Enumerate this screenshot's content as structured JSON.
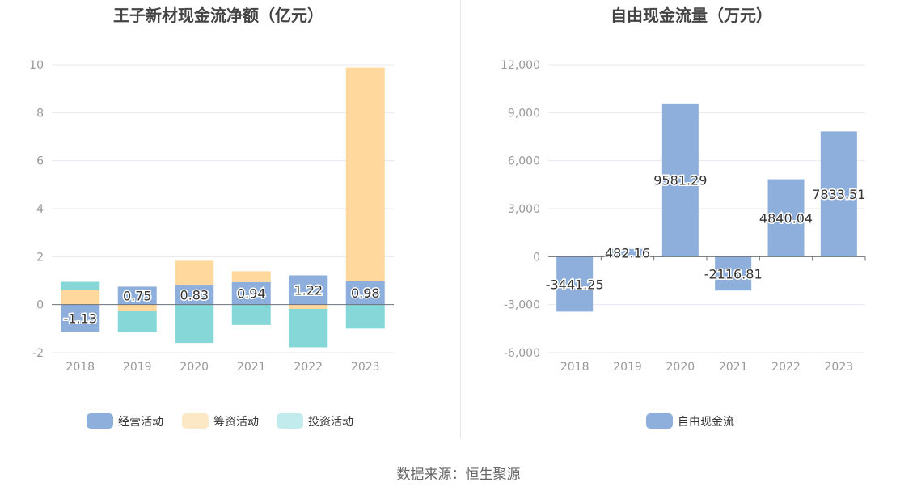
{
  "source_note": "数据来源：恒生聚源",
  "colors": {
    "operating": "#8eaedb",
    "financing": "#fed89c",
    "investing": "#86d7d8",
    "free_cash_flow": "#8eaedb",
    "legend_financing": "#fde8c6",
    "legend_investing": "#c1ebec",
    "axis_text": "#999999",
    "title_text": "#444444",
    "grid": "#e4e8ef"
  },
  "chart_data": [
    {
      "type": "bar",
      "stacked": true,
      "title": "王子新材现金流净额（亿元）",
      "categories": [
        "2018",
        "2019",
        "2020",
        "2021",
        "2022",
        "2023"
      ],
      "ylim": [
        -2,
        10
      ],
      "yticks": [
        "-2",
        "0",
        "2",
        "4",
        "6",
        "8",
        "10"
      ],
      "ytick_values": [
        -2,
        0,
        2,
        4,
        6,
        8,
        10
      ],
      "grid": true,
      "legend_position": "bottom",
      "series": [
        {
          "name": "经营活动",
          "values": [
            -1.13,
            0.75,
            0.83,
            0.94,
            1.22,
            0.98
          ],
          "labels": [
            "-1.13",
            "0.75",
            "0.83",
            "0.94",
            "1.22",
            "0.98"
          ]
        },
        {
          "name": "筹资活动",
          "values": [
            0.6,
            -0.25,
            1.0,
            0.45,
            -0.18,
            8.9
          ]
        },
        {
          "name": "投资活动",
          "values": [
            0.35,
            -0.9,
            -1.6,
            -0.85,
            -1.6,
            -1.0
          ]
        }
      ]
    },
    {
      "type": "bar",
      "title": "自由现金流量（万元）",
      "categories": [
        "2018",
        "2019",
        "2020",
        "2021",
        "2022",
        "2023"
      ],
      "ylim": [
        -6000,
        12000
      ],
      "yticks": [
        "-6,000",
        "-3,000",
        "0",
        "3,000",
        "6,000",
        "9,000",
        "12,000"
      ],
      "ytick_values": [
        -6000,
        -3000,
        0,
        3000,
        6000,
        9000,
        12000
      ],
      "grid": true,
      "legend_position": "bottom",
      "series": [
        {
          "name": "自由现金流",
          "values": [
            -3441.25,
            482.16,
            9581.29,
            -2116.81,
            4840.04,
            7833.51
          ],
          "labels": [
            "-3441.25",
            "482.16",
            "9581.29",
            "-2116.81",
            "4840.04",
            "7833.51"
          ]
        }
      ]
    }
  ]
}
